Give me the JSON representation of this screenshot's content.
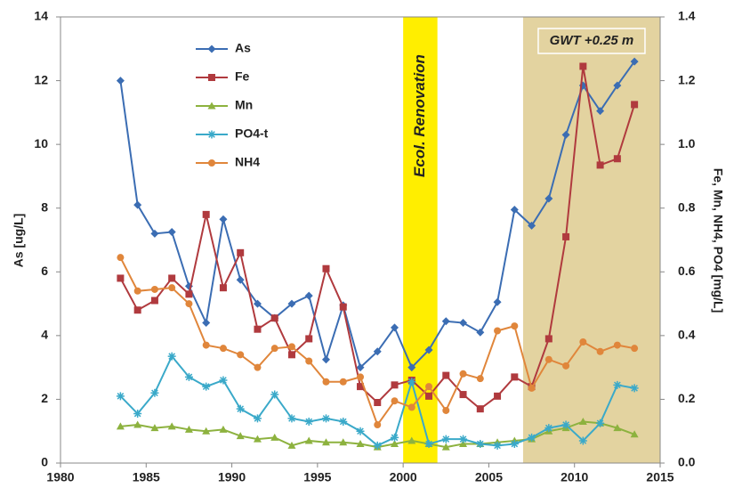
{
  "chart_data": {
    "type": "line",
    "y_label": "As  [ug/L]",
    "y2_label": "Fe, Mn, NH4, PO4  [mg/L]",
    "x": [
      1983.5,
      1984.5,
      1985.5,
      1986.5,
      1987.5,
      1988.5,
      1989.5,
      1990.5,
      1991.5,
      1992.5,
      1993.5,
      1994.5,
      1995.5,
      1996.5,
      1997.5,
      1998.5,
      1999.5,
      2000.5,
      2001.5,
      2002.5,
      2003.5,
      2004.5,
      2005.5,
      2006.5,
      2007.5,
      2008.5,
      2009.5,
      2010.5,
      2011.5,
      2012.5,
      2013.5
    ],
    "series": [
      {
        "name": "As",
        "color": "#3b6db3",
        "marker": "diamond",
        "axis": "y",
        "values": [
          12.0,
          8.1,
          7.2,
          7.25,
          5.55,
          4.4,
          7.65,
          5.75,
          5.0,
          4.55,
          5.0,
          5.25,
          3.25,
          4.95,
          3.0,
          3.5,
          4.25,
          3.0,
          3.55,
          4.45,
          4.4,
          4.1,
          5.05,
          7.95,
          7.45,
          8.3,
          10.3,
          11.85,
          11.05,
          11.85,
          12.6
        ]
      },
      {
        "name": "Fe",
        "color": "#b03a3e",
        "marker": "square",
        "axis": "y2",
        "values": [
          0.58,
          0.48,
          0.51,
          0.58,
          0.53,
          0.78,
          0.55,
          0.66,
          0.42,
          0.455,
          0.34,
          0.39,
          0.61,
          0.49,
          0.24,
          0.19,
          0.245,
          0.26,
          0.21,
          0.275,
          0.215,
          0.17,
          0.21,
          0.27,
          0.24,
          0.39,
          0.71,
          1.245,
          0.935,
          0.955,
          1.125
        ]
      },
      {
        "name": "Mn",
        "color": "#8db23f",
        "marker": "triangle",
        "axis": "y2",
        "values": [
          0.115,
          0.12,
          0.11,
          0.115,
          0.105,
          0.1,
          0.105,
          0.085,
          0.075,
          0.08,
          0.055,
          0.07,
          0.065,
          0.065,
          0.06,
          0.05,
          0.06,
          0.07,
          0.06,
          0.05,
          0.06,
          0.06,
          0.065,
          0.07,
          0.075,
          0.1,
          0.11,
          0.13,
          0.125,
          0.11,
          0.09
        ]
      },
      {
        "name": "PO4-t",
        "color": "#3aa9c9",
        "marker": "star",
        "axis": "y2",
        "values": [
          0.21,
          0.155,
          0.22,
          0.335,
          0.27,
          0.24,
          0.26,
          0.17,
          0.14,
          0.215,
          0.14,
          0.13,
          0.14,
          0.13,
          0.1,
          0.055,
          0.08,
          0.255,
          0.06,
          0.075,
          0.075,
          0.06,
          0.055,
          0.06,
          0.08,
          0.11,
          0.12,
          0.07,
          0.125,
          0.245,
          0.235
        ]
      },
      {
        "name": "NH4",
        "color": "#e0863b",
        "marker": "circle",
        "axis": "y2",
        "values": [
          0.645,
          0.54,
          0.545,
          0.55,
          0.5,
          0.37,
          0.36,
          0.34,
          0.3,
          0.36,
          0.365,
          0.32,
          0.255,
          0.255,
          0.27,
          0.12,
          0.195,
          0.175,
          0.24,
          0.165,
          0.28,
          0.265,
          0.415,
          0.43,
          0.235,
          0.325,
          0.305,
          0.38,
          0.35,
          0.37,
          0.36
        ]
      }
    ],
    "bands": [
      {
        "label": "Ecol. Renovation",
        "xlim": [
          2000,
          2002
        ],
        "color": "#ffee00",
        "label_style": "vertical"
      },
      {
        "label": "GWT +0.25 m",
        "xlim": [
          2007,
          2015
        ],
        "color": "#e3d3a0",
        "label_style": "boxed"
      }
    ],
    "xlim": [
      1980,
      2015
    ],
    "xticks": [
      1980,
      1985,
      1990,
      1995,
      2000,
      2005,
      2010,
      2015
    ],
    "ylim": [
      0,
      14
    ],
    "yticks": [
      0,
      2,
      4,
      6,
      8,
      10,
      12,
      14
    ],
    "y2lim": [
      0,
      1.4
    ],
    "y2ticks": [
      {
        "value": 0,
        "label": "0.0"
      },
      0.2,
      0.4,
      0.6,
      0.8,
      {
        "value": 1,
        "label": "1.0"
      },
      1.2,
      1.4
    ],
    "legend": "upper left",
    "grid": false
  }
}
